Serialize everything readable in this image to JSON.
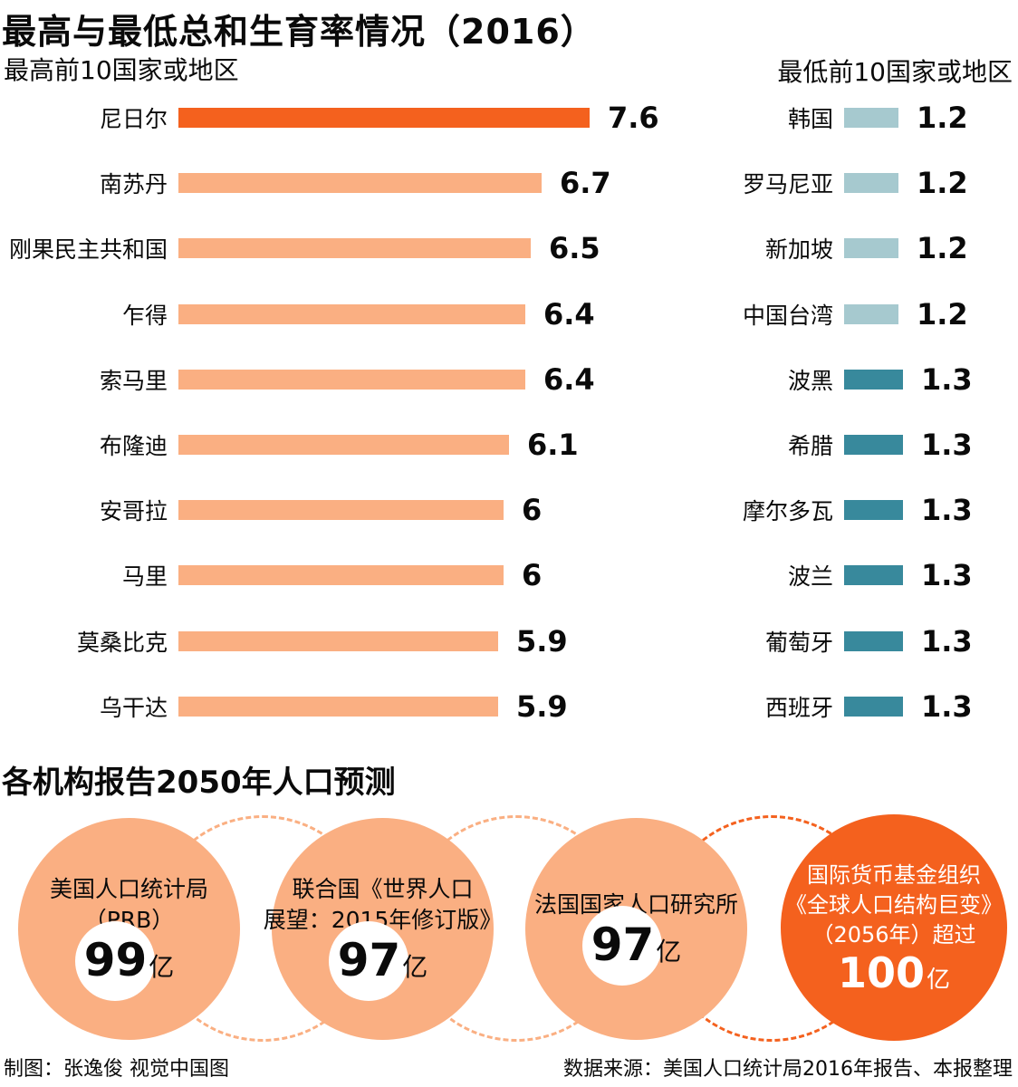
{
  "title": "最高与最低总和生育率情况（2016）",
  "fertility": {
    "highest": {
      "subtitle": "最高前10国家或地区",
      "rows": [
        {
          "label": "尼日尔",
          "value": 7.6,
          "display": "7.6",
          "color_key": "orange_bright"
        },
        {
          "label": "南苏丹",
          "value": 6.7,
          "display": "6.7",
          "color_key": "orange_light"
        },
        {
          "label": "刚果民主共和国",
          "value": 6.5,
          "display": "6.5",
          "color_key": "orange_light"
        },
        {
          "label": "乍得",
          "value": 6.4,
          "display": "6.4",
          "color_key": "orange_light"
        },
        {
          "label": "索马里",
          "value": 6.4,
          "display": "6.4",
          "color_key": "orange_light"
        },
        {
          "label": "布隆迪",
          "value": 6.1,
          "display": "6.1",
          "color_key": "orange_light"
        },
        {
          "label": "安哥拉",
          "value": 6,
          "display": "6",
          "color_key": "orange_light"
        },
        {
          "label": "马里",
          "value": 6,
          "display": "6",
          "color_key": "orange_light"
        },
        {
          "label": "莫桑比克",
          "value": 5.9,
          "display": "5.9",
          "color_key": "orange_light"
        },
        {
          "label": "乌干达",
          "value": 5.9,
          "display": "5.9",
          "color_key": "orange_light"
        }
      ]
    },
    "lowest": {
      "subtitle": "最低前10国家或地区",
      "rows": [
        {
          "label": "韩国",
          "value": 1.2,
          "display": "1.2",
          "color_key": "blue_light"
        },
        {
          "label": "罗马尼亚",
          "value": 1.2,
          "display": "1.2",
          "color_key": "blue_light"
        },
        {
          "label": "新加坡",
          "value": 1.2,
          "display": "1.2",
          "color_key": "blue_light"
        },
        {
          "label": "中国台湾",
          "value": 1.2,
          "display": "1.2",
          "color_key": "blue_light"
        },
        {
          "label": "波黑",
          "value": 1.3,
          "display": "1.3",
          "color_key": "teal"
        },
        {
          "label": "希腊",
          "value": 1.3,
          "display": "1.3",
          "color_key": "teal"
        },
        {
          "label": "摩尔多瓦",
          "value": 1.3,
          "display": "1.3",
          "color_key": "teal"
        },
        {
          "label": "波兰",
          "value": 1.3,
          "display": "1.3",
          "color_key": "teal"
        },
        {
          "label": "葡萄牙",
          "value": 1.3,
          "display": "1.3",
          "color_key": "teal"
        },
        {
          "label": "西班牙",
          "value": 1.3,
          "display": "1.3",
          "color_key": "teal"
        }
      ]
    }
  },
  "projection": {
    "title": "各机构报告2050年人口预测",
    "circles": [
      {
        "lines": [
          "美国人口统计局",
          "（PRB）"
        ],
        "number": "99",
        "unit": "亿"
      },
      {
        "lines": [
          "联合国《世界人口",
          "展望：2015年修订版》"
        ],
        "number": "97",
        "unit": "亿"
      },
      {
        "lines": [
          "法国国家人口研究所"
        ],
        "number": "97",
        "unit": "亿"
      },
      {
        "lines": [
          "国际货币基金组织",
          "《全球人口结构巨变》",
          "（2056年）超过"
        ],
        "number": "100",
        "unit": "亿"
      }
    ]
  },
  "footer": {
    "credit": "制图：张逸俊 视觉中国图",
    "source": "数据来源：美国人口统计局2016年报告、本报整理"
  },
  "colors": {
    "orange_bright": "#F4611E",
    "orange_light": "#FAAF82",
    "blue_light": "#A6C9CF",
    "teal": "#38899C"
  },
  "chart_data": [
    {
      "type": "bar",
      "orientation": "horizontal",
      "title": "最高前10国家或地区",
      "categories": [
        "尼日尔",
        "南苏丹",
        "刚果民主共和国",
        "乍得",
        "索马里",
        "布隆迪",
        "安哥拉",
        "马里",
        "莫桑比克",
        "乌干达"
      ],
      "values": [
        7.6,
        6.7,
        6.5,
        6.4,
        6.4,
        6.1,
        6,
        6,
        5.9,
        5.9
      ],
      "xlim": [
        0,
        7.6
      ],
      "grid": false,
      "value_labels": "end-of-bar",
      "highlight_category": "尼日尔"
    },
    {
      "type": "bar",
      "orientation": "horizontal",
      "title": "最低前10国家或地区",
      "categories": [
        "韩国",
        "罗马尼亚",
        "新加坡",
        "中国台湾",
        "波黑",
        "希腊",
        "摩尔多瓦",
        "波兰",
        "葡萄牙",
        "西班牙"
      ],
      "values": [
        1.2,
        1.2,
        1.2,
        1.2,
        1.3,
        1.3,
        1.3,
        1.3,
        1.3,
        1.3
      ],
      "grid": false,
      "value_labels": "end-of-bar",
      "color_groups": {
        "1.2": "blue_light",
        "1.3": "teal"
      }
    },
    {
      "type": "table",
      "title": "各机构报告2050年人口预测",
      "categories": [
        "美国人口统计局（PRB）",
        "联合国《世界人口展望：2015年修订版》",
        "法国国家人口研究所",
        "国际货币基金组织《全球人口结构巨变》（2056年）超过"
      ],
      "values": [
        99,
        97,
        97,
        100
      ],
      "unit": "亿"
    }
  ]
}
